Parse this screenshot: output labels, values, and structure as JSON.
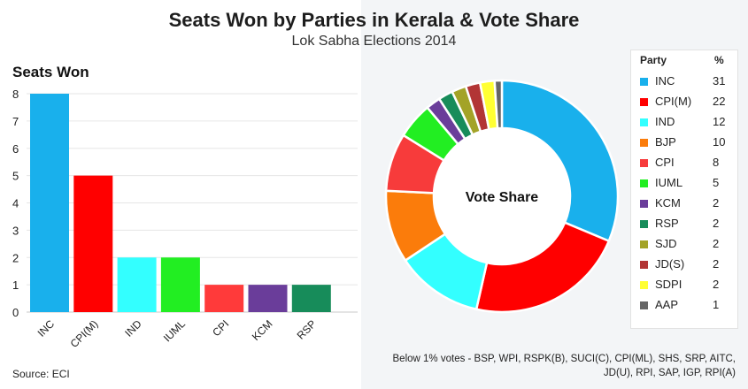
{
  "title": "Seats Won by Parties in Kerala & Vote Share",
  "subtitle": "Lok Sabha Elections 2014",
  "source": "Source: ECI",
  "footnote": "Below 1% votes - BSP, WPI, RSPK(B), SUCI(C), CPI(ML), SHS, SRP, AITC, JD(U), RPI, SAP, IGP, RPI(A)",
  "chart_data": [
    {
      "type": "bar",
      "title": "Seats Won",
      "categories": [
        "INC",
        "CPI(M)",
        "IND",
        "IUML",
        "CPI",
        "KCM",
        "RSP"
      ],
      "values": [
        8,
        5,
        2,
        2,
        1,
        1,
        1
      ],
      "colors": [
        "#19b0ec",
        "#ff0000",
        "#33ffff",
        "#22ee22",
        "#ff3a3a",
        "#6a3d9a",
        "#178c5a"
      ],
      "ylim": [
        0,
        8
      ],
      "yticks": [
        0,
        1,
        2,
        3,
        4,
        5,
        6,
        7,
        8
      ],
      "grid": true
    },
    {
      "type": "pie",
      "center_label": "Vote Share",
      "legend_headers": [
        "Party",
        "%"
      ],
      "labels": [
        "INC",
        "CPI(M)",
        "IND",
        "BJP",
        "CPI",
        "IUML",
        "KCM",
        "RSP",
        "SJD",
        "JD(S)",
        "SDPI",
        "AAP"
      ],
      "values": [
        31,
        22,
        12,
        10,
        8,
        5,
        2,
        2,
        2,
        2,
        2,
        1
      ],
      "colors": [
        "#19b0ec",
        "#ff0000",
        "#33ffff",
        "#fb7c0b",
        "#f73b3b",
        "#22ee22",
        "#6a3d9a",
        "#178c5a",
        "#a3a327",
        "#b23535",
        "#ffff33",
        "#666666"
      ],
      "legend_position": "right"
    }
  ]
}
